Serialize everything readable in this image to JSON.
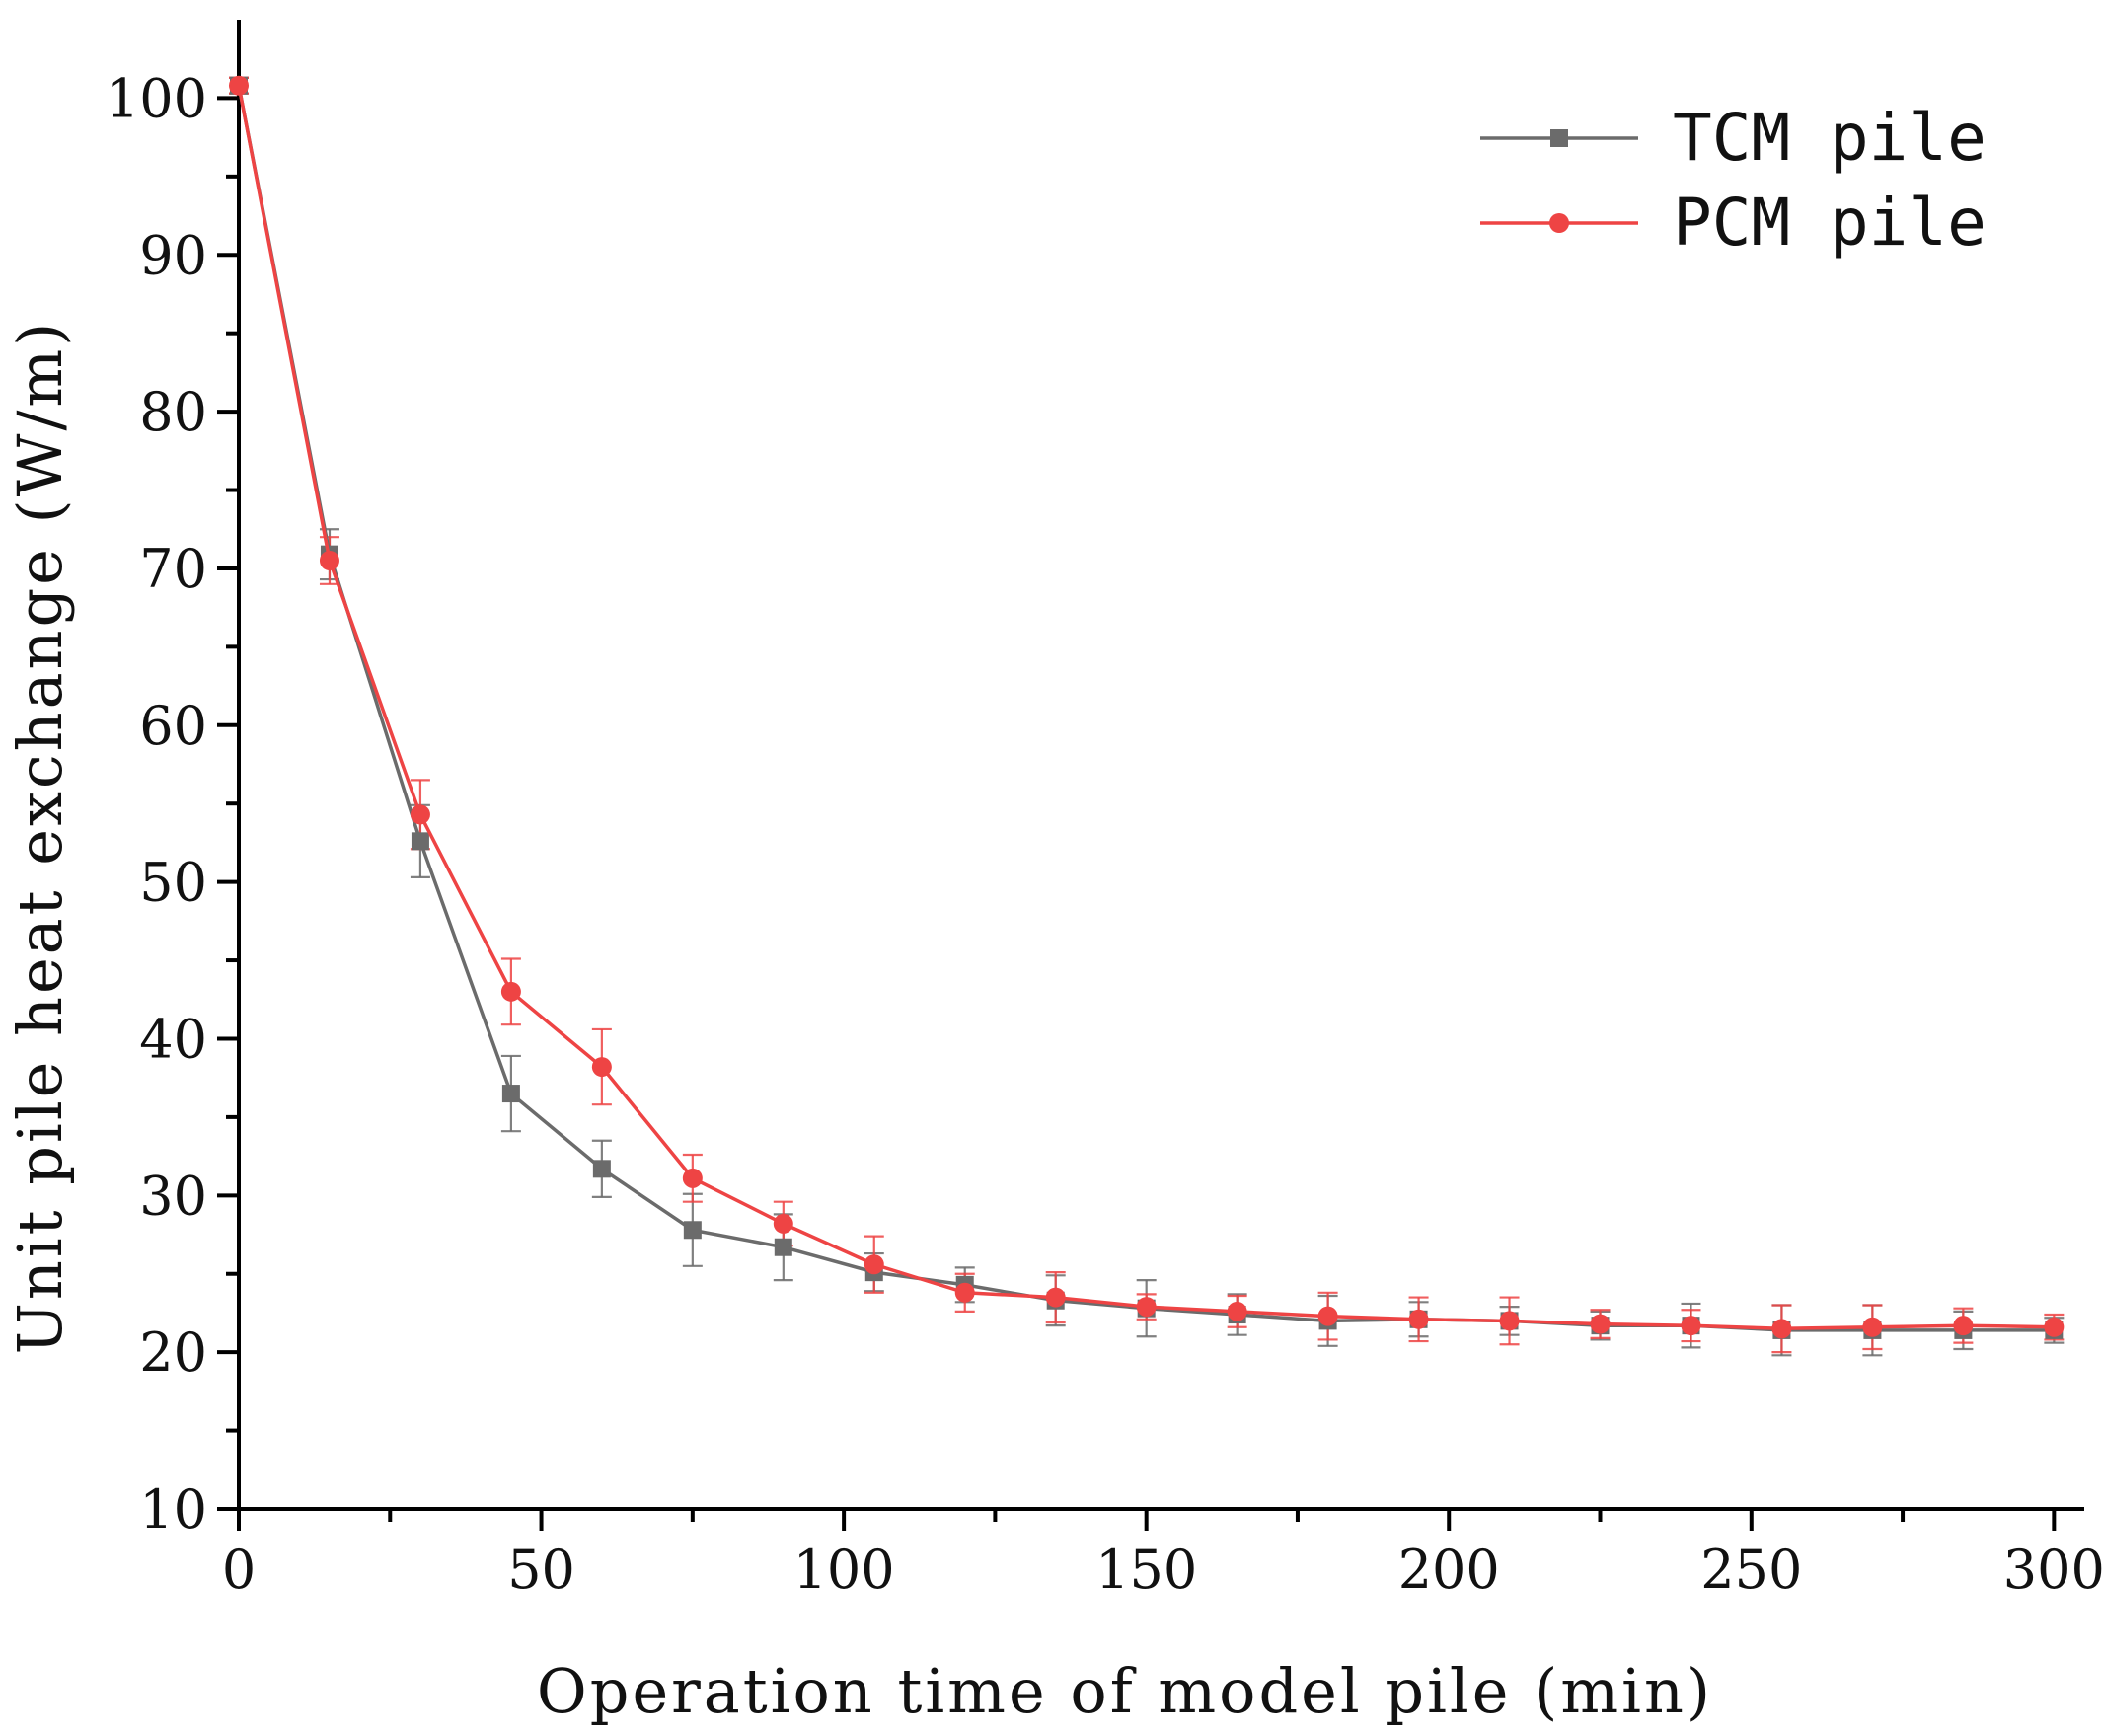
{
  "chart_data": {
    "type": "line",
    "title": "",
    "xlabel": "Operation time of model pile (min)",
    "ylabel": "Unit pile heat exchange (W/m)",
    "xlim": [
      0,
      305
    ],
    "ylim": [
      10,
      105
    ],
    "xticks": [
      0,
      50,
      100,
      150,
      200,
      250,
      300
    ],
    "yticks": [
      10,
      20,
      30,
      40,
      50,
      60,
      70,
      80,
      90,
      100
    ],
    "legend_position": "top-right",
    "x": [
      0,
      15,
      30,
      45,
      60,
      75,
      90,
      105,
      120,
      135,
      150,
      165,
      180,
      195,
      210,
      225,
      240,
      255,
      270,
      285,
      300
    ],
    "series": [
      {
        "name": "TCM pile",
        "color": "#6b6b6b",
        "marker": "square",
        "values": [
          100.8,
          70.9,
          52.6,
          36.5,
          31.7,
          27.8,
          26.7,
          25.1,
          24.3,
          23.3,
          22.8,
          22.4,
          22.0,
          22.1,
          22.0,
          21.7,
          21.7,
          21.4,
          21.4,
          21.4,
          21.4
        ],
        "errors": [
          0.5,
          1.6,
          2.3,
          2.4,
          1.8,
          2.3,
          2.1,
          1.2,
          1.1,
          1.6,
          1.8,
          1.3,
          1.6,
          1.1,
          0.9,
          0.9,
          1.4,
          1.6,
          1.6,
          1.2,
          0.8
        ]
      },
      {
        "name": "PCM pile",
        "color": "#ee4444",
        "marker": "circle",
        "values": [
          100.8,
          70.5,
          54.3,
          43.0,
          38.2,
          31.1,
          28.2,
          25.6,
          23.8,
          23.5,
          22.9,
          22.6,
          22.3,
          22.1,
          22.0,
          21.8,
          21.7,
          21.5,
          21.6,
          21.7,
          21.6
        ],
        "errors": [
          0.5,
          1.5,
          2.2,
          2.1,
          2.4,
          1.5,
          1.4,
          1.8,
          1.2,
          1.6,
          0.8,
          1.0,
          1.5,
          1.4,
          1.5,
          0.9,
          1.0,
          1.5,
          1.4,
          1.1,
          0.8
        ]
      }
    ]
  }
}
